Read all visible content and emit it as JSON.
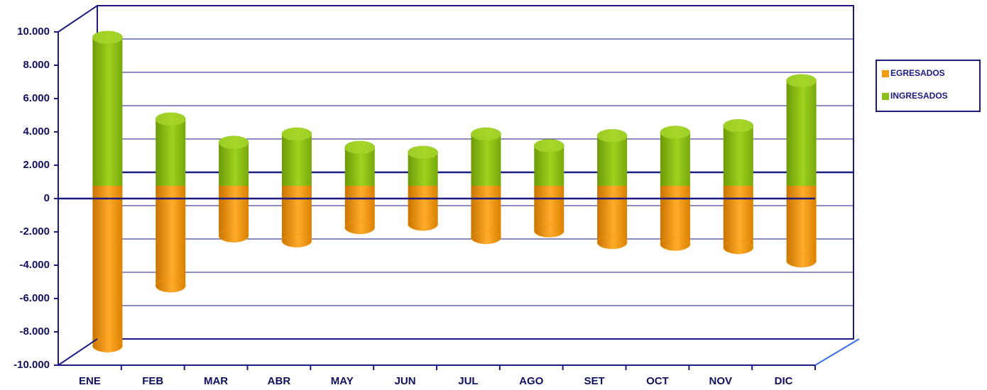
{
  "chart_data": {
    "type": "bar",
    "categories": [
      "ENE",
      "FEB",
      "MAR",
      "ABR",
      "MAY",
      "JUN",
      "JUL",
      "AGO",
      "SET",
      "OCT",
      "NOV",
      "DIC"
    ],
    "series": [
      {
        "name": "EGRESADOS",
        "color": "#f39a10",
        "values": [
          -9600,
          -6000,
          -3000,
          -3300,
          -2500,
          -2300,
          -3100,
          -2700,
          -3400,
          -3500,
          -3700,
          -4500
        ]
      },
      {
        "name": "INGRESADOS",
        "color": "#8cbf1a",
        "values": [
          8900,
          4000,
          2600,
          3100,
          2300,
          2000,
          3100,
          2400,
          3000,
          3200,
          3600,
          6300
        ]
      }
    ],
    "ylim": [
      -10000,
      10000
    ],
    "yticks": [
      {
        "value": -10000,
        "label": "-10.000"
      },
      {
        "value": -8000,
        "label": "-8.000"
      },
      {
        "value": -6000,
        "label": "-6.000"
      },
      {
        "value": -4000,
        "label": "-4.000"
      },
      {
        "value": -2000,
        "label": "-2.000"
      },
      0,
      {
        "value": 2000,
        "label": "2.000"
      },
      {
        "value": 4000,
        "label": "4.000"
      },
      {
        "value": 6000,
        "label": "6.000"
      },
      {
        "value": 8000,
        "label": "8.000"
      },
      {
        "value": 10000,
        "label": "10.000"
      }
    ],
    "grid": true,
    "legend": "right"
  }
}
